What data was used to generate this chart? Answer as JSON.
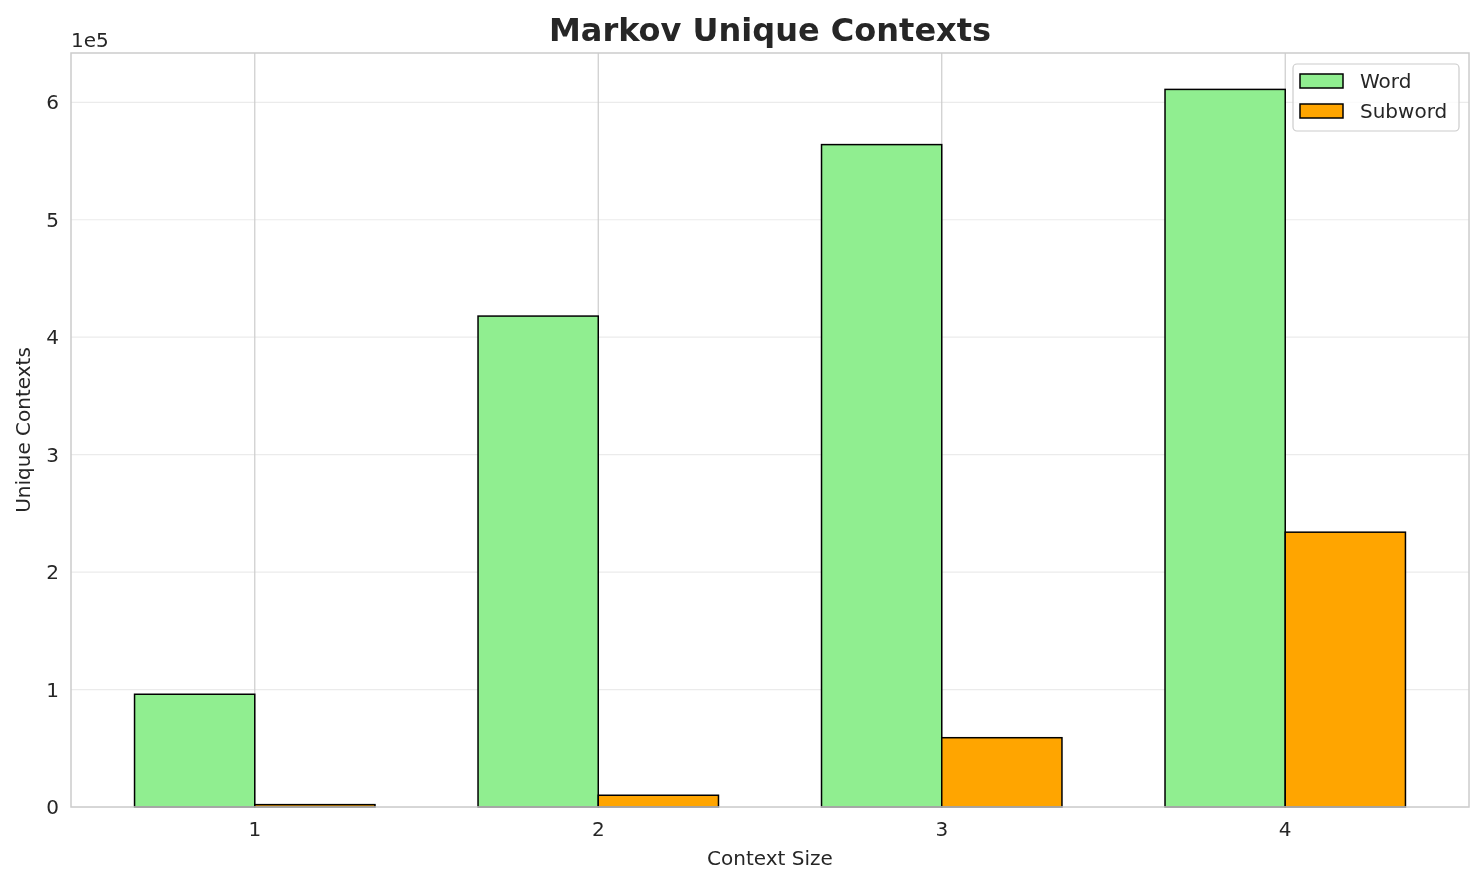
{
  "chart_data": {
    "type": "bar",
    "title": "Markov Unique Contexts",
    "xlabel": "Context Size",
    "ylabel": "Unique Contexts",
    "categories": [
      "1",
      "2",
      "3",
      "4"
    ],
    "series": [
      {
        "name": "Word",
        "color": "#90ee90",
        "values": [
          0.96,
          4.18,
          5.64,
          6.11
        ]
      },
      {
        "name": "Subword",
        "color": "#ffa500",
        "values": [
          0.02,
          0.1,
          0.59,
          2.34
        ]
      }
    ],
    "ylim": [
      0,
      6.42
    ],
    "yticks": [
      0,
      1,
      2,
      3,
      4,
      5,
      6
    ],
    "annotations": [
      "1e5"
    ],
    "grid": true,
    "legend": "top right"
  }
}
